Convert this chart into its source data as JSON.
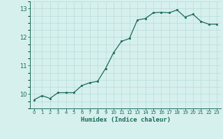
{
  "x": [
    0,
    1,
    2,
    3,
    4,
    5,
    6,
    7,
    8,
    9,
    10,
    11,
    12,
    13,
    14,
    15,
    16,
    17,
    18,
    19,
    20,
    21,
    22,
    23
  ],
  "y": [
    9.8,
    9.95,
    9.85,
    10.05,
    10.05,
    10.05,
    10.3,
    10.4,
    10.45,
    10.9,
    11.45,
    11.85,
    11.95,
    12.6,
    12.65,
    12.85,
    12.87,
    12.85,
    12.95,
    12.7,
    12.8,
    12.55,
    12.45,
    12.45
  ],
  "xlabel": "Humidex (Indice chaleur)",
  "bg_color": "#d6f0ee",
  "line_color": "#1a6b5a",
  "marker_color": "#1a6b5a",
  "grid_color": "#b8dbd8",
  "tick_color": "#1a6b5a",
  "xlabel_color": "#1a6b5a",
  "yticks": [
    10,
    11,
    12,
    13
  ],
  "xticks": [
    0,
    1,
    2,
    3,
    4,
    5,
    6,
    7,
    8,
    9,
    10,
    11,
    12,
    13,
    14,
    15,
    16,
    17,
    18,
    19,
    20,
    21,
    22,
    23
  ],
  "ylim": [
    9.5,
    13.25
  ],
  "xlim": [
    -0.5,
    23.5
  ]
}
